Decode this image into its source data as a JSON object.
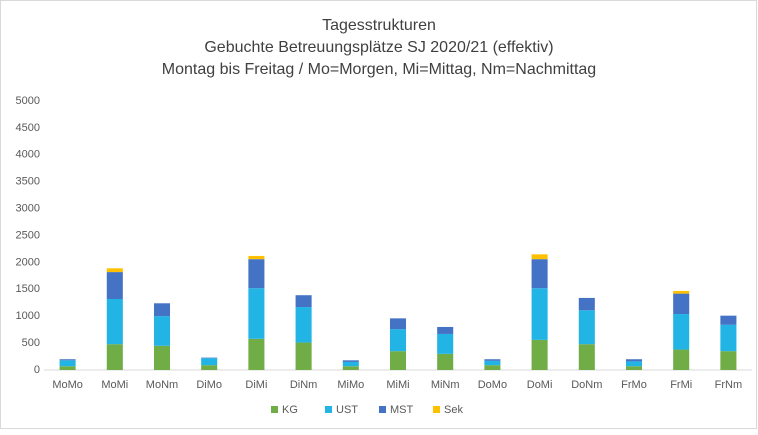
{
  "chart_data": {
    "type": "stacked_bar",
    "title": [
      "Tagesstrukturen",
      "Gebuchte Betreuungsplätze SJ 2020/21  (effektiv)",
      "Montag bis Freitag / Mo=Morgen, Mi=Mittag, Nm=Nachmittag"
    ],
    "categories": [
      "MoMo",
      "MoMi",
      "MoNm",
      "DiMo",
      "DiMi",
      "DiNm",
      "MiMo",
      "MiMi",
      "MiNm",
      "DoMo",
      "DoMi",
      "DoNm",
      "FrMo",
      "FrMi",
      "FrNm"
    ],
    "series": [
      {
        "name": "KG",
        "color": "#70ad47",
        "values": [
          70,
          480,
          450,
          90,
          580,
          510,
          70,
          350,
          300,
          90,
          560,
          480,
          70,
          380,
          350
        ]
      },
      {
        "name": "UST",
        "color": "#21b4e5",
        "values": [
          110,
          840,
          550,
          130,
          940,
          660,
          80,
          410,
          370,
          80,
          960,
          630,
          90,
          660,
          490
        ]
      },
      {
        "name": "MST",
        "color": "#4472c4",
        "values": [
          20,
          500,
          240,
          10,
          540,
          220,
          30,
          200,
          130,
          30,
          540,
          230,
          40,
          380,
          170
        ]
      },
      {
        "name": "Sek",
        "color": "#ffc000",
        "values": [
          0,
          70,
          0,
          0,
          60,
          0,
          0,
          0,
          0,
          0,
          90,
          0,
          0,
          50,
          0
        ]
      }
    ],
    "ylim": [
      0,
      5000
    ],
    "yticks": [
      0,
      500,
      1000,
      1500,
      2000,
      2500,
      3000,
      3500,
      4000,
      4500,
      5000
    ],
    "grid": false,
    "legend": "bottom"
  }
}
